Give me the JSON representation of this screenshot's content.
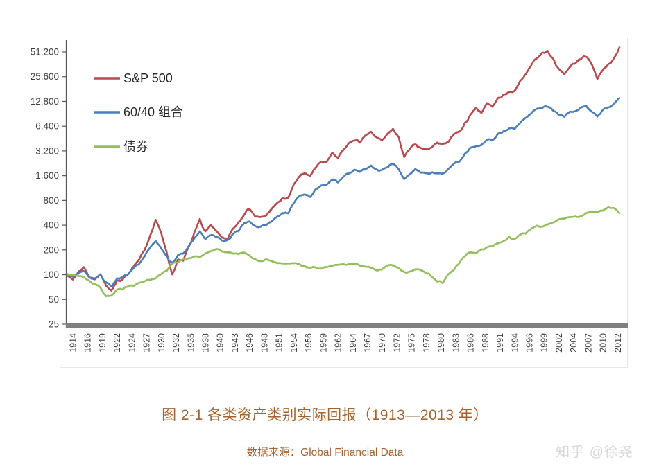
{
  "caption": {
    "text": "图 2-1 各类资产类别实际回报（1913—2013 年）",
    "source_label": "数据来源：Global Financial Data",
    "color": "#a5622c"
  },
  "watermark": {
    "text": "知乎 @徐尧",
    "color": "#d8d8d8"
  },
  "chart_data": {
    "type": "line",
    "title": "",
    "xlabel": "",
    "ylabel": "",
    "grid": false,
    "legend_position": "upper-left",
    "y_axis": {
      "scale": "log2",
      "min": 25,
      "max": 51200,
      "ticks": [
        {
          "v": 51200,
          "label": "51,200"
        },
        {
          "v": 25600,
          "label": "25,600"
        },
        {
          "v": 12800,
          "label": "12,800"
        },
        {
          "v": 6400,
          "label": "6,400"
        },
        {
          "v": 3200,
          "label": "3,200"
        },
        {
          "v": 1600,
          "label": "1,600"
        },
        {
          "v": 800,
          "label": "800"
        },
        {
          "v": 400,
          "label": "400"
        },
        {
          "v": 200,
          "label": "200"
        },
        {
          "v": 100,
          "label": "100"
        },
        {
          "v": 50,
          "label": "50"
        },
        {
          "v": 25,
          "label": "25"
        }
      ]
    },
    "x_axis": {
      "range_start": 1913,
      "range_end": 2013,
      "tick_first_year": 1914,
      "tick_interval_years": 2.6667,
      "tick_labels": [
        "1914",
        "1916",
        "1919",
        "1922",
        "1924",
        "1927",
        "1930",
        "1932",
        "1935",
        "1938",
        "1940",
        "1943",
        "1946",
        "1948",
        "1951",
        "1954",
        "1956",
        "1959",
        "1962",
        "1964",
        "1967",
        "1970",
        "1972",
        "1975",
        "1978",
        "1980",
        "1983",
        "1986",
        "1988",
        "1991",
        "1994",
        "1996",
        "1999",
        "2002",
        "2004",
        "2007",
        "2010",
        "2012"
      ]
    },
    "x_years": {
      "start": 1913,
      "end": 2013,
      "step": 1
    },
    "series": [
      {
        "name": "S&P 500",
        "color": "#b84a4d",
        "wiggle": 0.028,
        "values": [
          100,
          88,
          108,
          122,
          92,
          88,
          102,
          74,
          64,
          84,
          88,
          102,
          130,
          152,
          205,
          295,
          470,
          330,
          185,
          98,
          150,
          152,
          215,
          320,
          460,
          330,
          395,
          345,
          290,
          275,
          370,
          425,
          545,
          650,
          500,
          505,
          520,
          630,
          740,
          850,
          850,
          1240,
          1600,
          1730,
          1580,
          2080,
          2380,
          2400,
          3000,
          2700,
          3300,
          3900,
          4400,
          4100,
          4900,
          5500,
          4700,
          4400,
          5100,
          5800,
          4700,
          2700,
          3400,
          3900,
          3500,
          3300,
          3600,
          4000,
          3800,
          4200,
          5100,
          5400,
          6800,
          8800,
          10800,
          9500,
          12000,
          11200,
          14000,
          15200,
          16800,
          17000,
          22500,
          27500,
          35500,
          43500,
          50000,
          51500,
          41500,
          31000,
          27500,
          34500,
          37500,
          42000,
          46000,
          35000,
          24000,
          32000,
          36500,
          42500,
          57500
        ]
      },
      {
        "name": "60/40 组合",
        "color": "#4a7ebb",
        "wiggle": 0.023,
        "values": [
          100,
          93,
          105,
          112,
          92,
          90,
          100,
          80,
          72,
          88,
          92,
          102,
          120,
          136,
          170,
          212,
          258,
          215,
          165,
          138,
          172,
          182,
          222,
          275,
          330,
          272,
          305,
          288,
          262,
          258,
          310,
          345,
          415,
          455,
          385,
          385,
          405,
          455,
          505,
          560,
          560,
          745,
          890,
          935,
          880,
          1090,
          1200,
          1220,
          1440,
          1340,
          1540,
          1730,
          1880,
          1760,
          1950,
          2090,
          1860,
          1860,
          2060,
          2260,
          1950,
          1430,
          1660,
          1900,
          1780,
          1720,
          1720,
          1720,
          1680,
          1950,
          2250,
          2400,
          2950,
          3500,
          3650,
          3750,
          4450,
          4300,
          5100,
          5500,
          6100,
          5900,
          7100,
          7900,
          9300,
          10400,
          10900,
          11100,
          9900,
          8900,
          8500,
          9600,
          9900,
          10700,
          11400,
          9600,
          8400,
          10100,
          10900,
          11900,
          13900
        ]
      },
      {
        "name": "债券",
        "color": "#94bd5b",
        "wiggle": 0.018,
        "values": [
          100,
          99,
          97,
          94,
          83,
          76,
          70,
          54,
          56,
          66,
          67,
          72,
          74,
          79,
          84,
          87,
          91,
          103,
          112,
          135,
          142,
          152,
          158,
          167,
          163,
          178,
          192,
          204,
          196,
          186,
          181,
          180,
          186,
          172,
          152,
          146,
          152,
          147,
          137,
          136,
          136,
          139,
          133,
          126,
          123,
          123,
          119,
          126,
          128,
          132,
          133,
          135,
          136,
          130,
          125,
          122,
          112,
          117,
          129,
          132,
          121,
          106,
          108,
          118,
          116,
          106,
          96,
          84,
          80,
          100,
          115,
          140,
          170,
          190,
          185,
          200,
          215,
          220,
          240,
          255,
          285,
          265,
          310,
          320,
          360,
          400,
          380,
          410,
          430,
          465,
          480,
          500,
          510,
          505,
          560,
          590,
          570,
          610,
          650,
          640,
          560
        ]
      }
    ],
    "style": {
      "axis_color": "#595959",
      "baseline_color": "#7f7f7f",
      "frame_color": "#d9d9d9",
      "tick_label_color": "#3f3f3f",
      "legend_text_color": "#262626"
    }
  }
}
